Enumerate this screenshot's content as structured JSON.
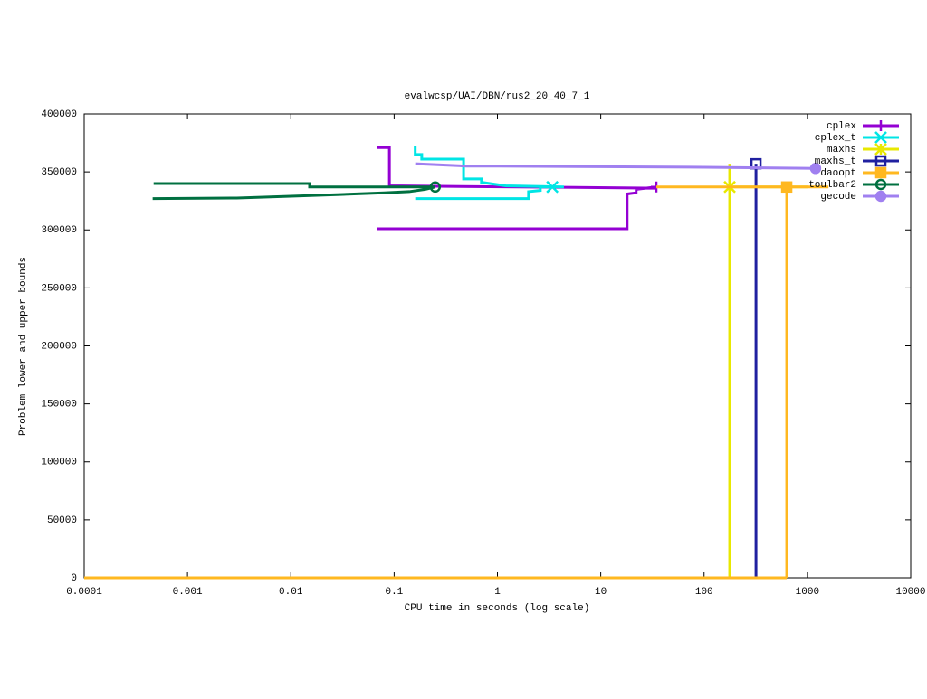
{
  "chart_data": {
    "type": "line",
    "title": "evalwcsp/UAI/DBN/rus2_20_40_7_1",
    "xlabel": "CPU time in seconds (log scale)",
    "ylabel": "Problem lower and upper bounds",
    "xscale": "log",
    "xlim": [
      0.0001,
      10000
    ],
    "xticks": [
      0.0001,
      0.001,
      0.01,
      0.1,
      1,
      10,
      100,
      1000,
      10000
    ],
    "ylim": [
      0,
      400000
    ],
    "yticks": [
      0,
      50000,
      100000,
      150000,
      200000,
      250000,
      300000,
      350000,
      400000
    ],
    "legend": "top-right",
    "series": [
      {
        "name": "cplex",
        "color": "#9400d3",
        "marker": "plus",
        "x": [
          0.069,
          0.09,
          0.09,
          34.5,
          null,
          0.069,
          18,
          18,
          22,
          22,
          34.5
        ],
        "values": [
          371000,
          371000,
          338000,
          336000,
          null,
          301000,
          301000,
          331000,
          332000,
          335000,
          337000
        ]
      },
      {
        "name": "cplex_t",
        "color": "#00e5e5",
        "marker": "cross",
        "x": [
          0.16,
          0.16,
          0.185,
          0.185,
          0.47,
          0.47,
          0.7,
          0.7,
          1.2,
          4.4,
          null,
          0.16,
          2.0,
          2.0,
          2.6,
          2.6,
          3.4
        ],
        "values": [
          372000,
          365000,
          365000,
          361000,
          361000,
          344000,
          344000,
          341000,
          338000,
          337000,
          null,
          327000,
          327000,
          333000,
          334000,
          337000,
          337000
        ]
      },
      {
        "name": "maxhs",
        "color": "#e8e800",
        "marker": "star",
        "x": [
          0.0001,
          177,
          null,
          177,
          177,
          null,
          1000,
          177
        ],
        "values": [
          0,
          0,
          null,
          357000,
          0,
          null,
          337000,
          337000
        ]
      },
      {
        "name": "maxhs_t",
        "color": "#2020a0",
        "marker": "open-square",
        "x": [
          318,
          318
        ],
        "values": [
          0,
          357000
        ]
      },
      {
        "name": "daoopt",
        "color": "#ffb820",
        "marker": "filled-square",
        "x": [
          0.0001,
          631,
          null,
          34.5,
          1600,
          null,
          631,
          631
        ],
        "values": [
          0,
          0,
          null,
          337000,
          337000,
          null,
          0,
          337000
        ]
      },
      {
        "name": "toulbar2",
        "color": "#007040",
        "marker": "open-circle",
        "x": [
          0.00046,
          0.003,
          0.01,
          0.03,
          0.08,
          0.14,
          0.2,
          0.25,
          null,
          0.00047,
          0.0152,
          0.0152,
          0.25
        ],
        "values": [
          327000,
          327500,
          329000,
          330500,
          332000,
          333000,
          335000,
          337000,
          null,
          340000,
          340000,
          337000,
          337000
        ]
      },
      {
        "name": "gecode",
        "color": "#a080f0",
        "marker": "filled-circle",
        "x": [
          0.16,
          0.5,
          1,
          10,
          100,
          1200
        ],
        "values": [
          357000,
          355000,
          355000,
          354500,
          354000,
          353000
        ]
      }
    ]
  }
}
